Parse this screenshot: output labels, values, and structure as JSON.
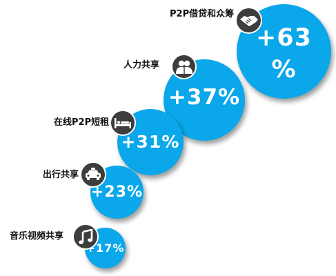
{
  "items": [
    {
      "key": "p2p-lending",
      "label": "P2P借贷和众筹",
      "value_line1": "+63",
      "value_line2": "%",
      "icon": "handshake-icon"
    },
    {
      "key": "labor",
      "label": "人力共享",
      "value_line1": "+37%",
      "icon": "people-icon"
    },
    {
      "key": "rental",
      "label": "在线P2P短租",
      "value_line1": "+31%",
      "icon": "bed-icon"
    },
    {
      "key": "mobility",
      "label": "出行共享",
      "value_line1": "+23%",
      "icon": "taxi-icon"
    },
    {
      "key": "media",
      "label": "音乐视频共享",
      "value_line1": "+17%",
      "icon": "music-icon"
    }
  ],
  "colors": {
    "bubble": "#0aa7ea",
    "badge": "#3d3d3d",
    "text": "#111111"
  }
}
